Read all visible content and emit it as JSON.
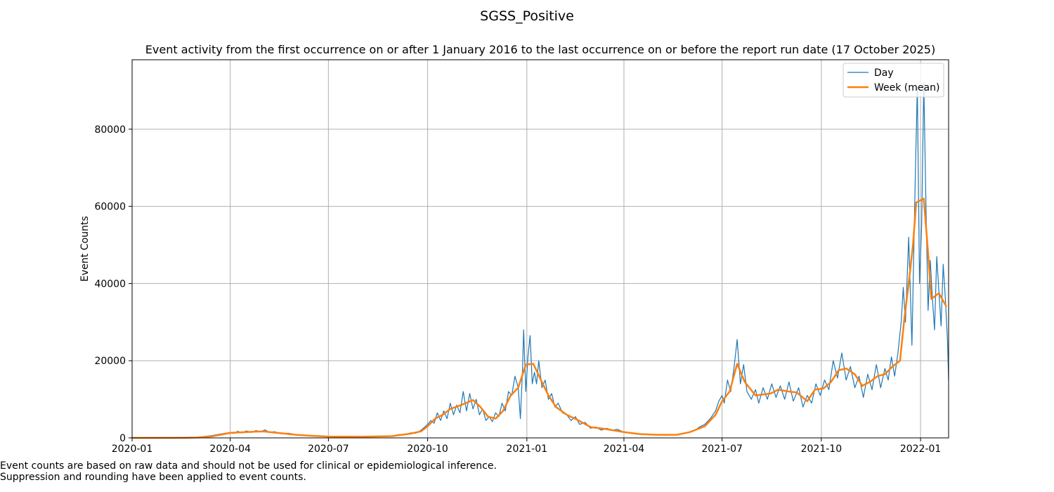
{
  "figure_title": "SGSS_Positive",
  "footnotes": [
    "Event counts are based on raw data and should not be used for clinical or epidemiological inference.",
    "Suppression and rounding have been applied to event counts."
  ],
  "chart_data": {
    "type": "line",
    "title": "Event activity from the first occurrence on or after 1 January 2016 to the last occurrence on or before the report run date (17 October 2025)",
    "xlabel": "",
    "ylabel": "Event Counts",
    "xlim": [
      "2020-01-01",
      "2022-01-27"
    ],
    "ylim": [
      0,
      98000
    ],
    "x_ticks": [
      "2020-01",
      "2020-04",
      "2020-07",
      "2020-10",
      "2021-01",
      "2021-04",
      "2021-07",
      "2021-10",
      "2022-01"
    ],
    "y_ticks": [
      0,
      20000,
      40000,
      60000,
      80000
    ],
    "grid": true,
    "legend_position": "upper right",
    "colors": {
      "day": "#1f77b4",
      "week": "#ff7f0e"
    },
    "series": [
      {
        "name": "Day",
        "points": [
          [
            "2020-01-01",
            0
          ],
          [
            "2020-02-15",
            20
          ],
          [
            "2020-03-01",
            150
          ],
          [
            "2020-03-15",
            600
          ],
          [
            "2020-03-25",
            1100
          ],
          [
            "2020-04-01",
            1400
          ],
          [
            "2020-04-04",
            1150
          ],
          [
            "2020-04-08",
            1700
          ],
          [
            "2020-04-12",
            1300
          ],
          [
            "2020-04-16",
            1800
          ],
          [
            "2020-04-20",
            1400
          ],
          [
            "2020-04-25",
            1900
          ],
          [
            "2020-04-29",
            1500
          ],
          [
            "2020-05-03",
            2100
          ],
          [
            "2020-05-07",
            1500
          ],
          [
            "2020-05-12",
            1600
          ],
          [
            "2020-05-18",
            1100
          ],
          [
            "2020-05-25",
            1200
          ],
          [
            "2020-06-01",
            800
          ],
          [
            "2020-06-10",
            600
          ],
          [
            "2020-06-20",
            500
          ],
          [
            "2020-07-01",
            300
          ],
          [
            "2020-07-15",
            250
          ],
          [
            "2020-08-01",
            280
          ],
          [
            "2020-08-15",
            400
          ],
          [
            "2020-08-29",
            500
          ],
          [
            "2020-09-05",
            900
          ],
          [
            "2020-09-10",
            800
          ],
          [
            "2020-09-15",
            1300
          ],
          [
            "2020-09-20",
            1200
          ],
          [
            "2020-09-25",
            2000
          ],
          [
            "2020-10-01",
            3500
          ],
          [
            "2020-10-04",
            4500
          ],
          [
            "2020-10-07",
            3800
          ],
          [
            "2020-10-10",
            6500
          ],
          [
            "2020-10-13",
            4500
          ],
          [
            "2020-10-16",
            7000
          ],
          [
            "2020-10-19",
            5000
          ],
          [
            "2020-10-22",
            9000
          ],
          [
            "2020-10-25",
            6000
          ],
          [
            "2020-10-28",
            8500
          ],
          [
            "2020-10-31",
            6500
          ],
          [
            "2020-11-03",
            12000
          ],
          [
            "2020-11-06",
            7000
          ],
          [
            "2020-11-09",
            11500
          ],
          [
            "2020-11-12",
            7500
          ],
          [
            "2020-11-15",
            10000
          ],
          [
            "2020-11-18",
            6000
          ],
          [
            "2020-11-21",
            7500
          ],
          [
            "2020-11-24",
            4500
          ],
          [
            "2020-11-27",
            5500
          ],
          [
            "2020-11-30",
            4200
          ],
          [
            "2020-12-03",
            6500
          ],
          [
            "2020-12-06",
            5500
          ],
          [
            "2020-12-09",
            9000
          ],
          [
            "2020-12-12",
            7000
          ],
          [
            "2020-12-15",
            12000
          ],
          [
            "2020-12-18",
            11000
          ],
          [
            "2020-12-21",
            16000
          ],
          [
            "2020-12-24",
            13000
          ],
          [
            "2020-12-26",
            5000
          ],
          [
            "2020-12-28",
            18000
          ],
          [
            "2020-12-29",
            28000
          ],
          [
            "2020-12-31",
            12000
          ],
          [
            "2021-01-02",
            21000
          ],
          [
            "2021-01-04",
            26500
          ],
          [
            "2021-01-06",
            14000
          ],
          [
            "2021-01-08",
            17000
          ],
          [
            "2021-01-10",
            14000
          ],
          [
            "2021-01-12",
            20000
          ],
          [
            "2021-01-15",
            13000
          ],
          [
            "2021-01-18",
            15000
          ],
          [
            "2021-01-21",
            10000
          ],
          [
            "2021-01-24",
            11500
          ],
          [
            "2021-01-27",
            8000
          ],
          [
            "2021-01-30",
            9000
          ],
          [
            "2021-02-03",
            6500
          ],
          [
            "2021-02-07",
            6000
          ],
          [
            "2021-02-11",
            4500
          ],
          [
            "2021-02-15",
            5500
          ],
          [
            "2021-02-19",
            3500
          ],
          [
            "2021-02-24",
            4000
          ],
          [
            "2021-03-01",
            2500
          ],
          [
            "2021-03-06",
            2800
          ],
          [
            "2021-03-11",
            2000
          ],
          [
            "2021-03-16",
            2500
          ],
          [
            "2021-03-21",
            2000
          ],
          [
            "2021-03-26",
            2200
          ],
          [
            "2021-04-01",
            1500
          ],
          [
            "2021-04-10",
            1100
          ],
          [
            "2021-04-20",
            900
          ],
          [
            "2021-05-01",
            800
          ],
          [
            "2021-05-10",
            700
          ],
          [
            "2021-05-20",
            900
          ],
          [
            "2021-05-27",
            1200
          ],
          [
            "2021-06-01",
            1500
          ],
          [
            "2021-06-05",
            1800
          ],
          [
            "2021-06-10",
            2800
          ],
          [
            "2021-06-15",
            3500
          ],
          [
            "2021-06-20",
            5000
          ],
          [
            "2021-06-25",
            7000
          ],
          [
            "2021-06-28",
            9500
          ],
          [
            "2021-07-01",
            11000
          ],
          [
            "2021-07-03",
            9000
          ],
          [
            "2021-07-06",
            15000
          ],
          [
            "2021-07-09",
            12000
          ],
          [
            "2021-07-12",
            18000
          ],
          [
            "2021-07-15",
            25500
          ],
          [
            "2021-07-18",
            14000
          ],
          [
            "2021-07-21",
            19000
          ],
          [
            "2021-07-24",
            12000
          ],
          [
            "2021-07-28",
            10000
          ],
          [
            "2021-08-01",
            12500
          ],
          [
            "2021-08-04",
            9000
          ],
          [
            "2021-08-08",
            13000
          ],
          [
            "2021-08-12",
            10000
          ],
          [
            "2021-08-16",
            14000
          ],
          [
            "2021-08-20",
            10500
          ],
          [
            "2021-08-24",
            13500
          ],
          [
            "2021-08-28",
            10000
          ],
          [
            "2021-09-01",
            14500
          ],
          [
            "2021-09-05",
            9500
          ],
          [
            "2021-09-10",
            13000
          ],
          [
            "2021-09-14",
            8000
          ],
          [
            "2021-09-18",
            11000
          ],
          [
            "2021-09-22",
            9000
          ],
          [
            "2021-09-26",
            14000
          ],
          [
            "2021-09-30",
            11000
          ],
          [
            "2021-10-04",
            15000
          ],
          [
            "2021-10-08",
            12500
          ],
          [
            "2021-10-12",
            20000
          ],
          [
            "2021-10-16",
            15500
          ],
          [
            "2021-10-20",
            22000
          ],
          [
            "2021-10-24",
            15000
          ],
          [
            "2021-10-28",
            18500
          ],
          [
            "2021-11-01",
            13000
          ],
          [
            "2021-11-05",
            16000
          ],
          [
            "2021-11-09",
            10500
          ],
          [
            "2021-11-13",
            16500
          ],
          [
            "2021-11-17",
            12500
          ],
          [
            "2021-11-21",
            19000
          ],
          [
            "2021-11-25",
            13000
          ],
          [
            "2021-11-29",
            18000
          ],
          [
            "2021-12-02",
            15000
          ],
          [
            "2021-12-05",
            21000
          ],
          [
            "2021-12-08",
            16000
          ],
          [
            "2021-12-11",
            22000
          ],
          [
            "2021-12-14",
            30000
          ],
          [
            "2021-12-16",
            39000
          ],
          [
            "2021-12-18",
            30000
          ],
          [
            "2021-12-21",
            52000
          ],
          [
            "2021-12-24",
            24000
          ],
          [
            "2021-12-27",
            66000
          ],
          [
            "2021-12-29",
            91000
          ],
          [
            "2021-12-31",
            40000
          ],
          [
            "2022-01-02",
            55000
          ],
          [
            "2022-01-04",
            92000
          ],
          [
            "2022-01-06",
            60000
          ],
          [
            "2022-01-08",
            33000
          ],
          [
            "2022-01-10",
            46000
          ],
          [
            "2022-01-12",
            36000
          ],
          [
            "2022-01-14",
            28000
          ],
          [
            "2022-01-16",
            47000
          ],
          [
            "2022-01-18",
            38000
          ],
          [
            "2022-01-20",
            29000
          ],
          [
            "2022-01-22",
            45000
          ],
          [
            "2022-01-24",
            36000
          ],
          [
            "2022-01-26",
            25000
          ],
          [
            "2022-01-27",
            15000
          ]
        ]
      },
      {
        "name": "Week (mean)",
        "points": [
          [
            "2020-01-01",
            0
          ],
          [
            "2020-02-15",
            20
          ],
          [
            "2020-03-01",
            100
          ],
          [
            "2020-03-15",
            400
          ],
          [
            "2020-04-01",
            1300
          ],
          [
            "2020-04-15",
            1500
          ],
          [
            "2020-05-01",
            1700
          ],
          [
            "2020-05-15",
            1300
          ],
          [
            "2020-06-01",
            800
          ],
          [
            "2020-06-15",
            550
          ],
          [
            "2020-07-01",
            350
          ],
          [
            "2020-08-01",
            300
          ],
          [
            "2020-08-29",
            450
          ],
          [
            "2020-09-15",
            1100
          ],
          [
            "2020-09-25",
            1700
          ],
          [
            "2020-10-01",
            3000
          ],
          [
            "2020-10-08",
            5000
          ],
          [
            "2020-10-15",
            6000
          ],
          [
            "2020-10-22",
            7500
          ],
          [
            "2020-11-01",
            8500
          ],
          [
            "2020-11-12",
            9800
          ],
          [
            "2020-11-19",
            8000
          ],
          [
            "2020-11-26",
            5500
          ],
          [
            "2020-12-03",
            5000
          ],
          [
            "2020-12-10",
            7000
          ],
          [
            "2020-12-17",
            11000
          ],
          [
            "2020-12-24",
            13000
          ],
          [
            "2020-12-31",
            19000
          ],
          [
            "2021-01-07",
            19200
          ],
          [
            "2021-01-14",
            15000
          ],
          [
            "2021-01-21",
            11000
          ],
          [
            "2021-01-28",
            8000
          ],
          [
            "2021-02-07",
            6000
          ],
          [
            "2021-02-18",
            4500
          ],
          [
            "2021-03-01",
            2800
          ],
          [
            "2021-03-15",
            2300
          ],
          [
            "2021-04-01",
            1500
          ],
          [
            "2021-04-15",
            1000
          ],
          [
            "2021-05-01",
            800
          ],
          [
            "2021-05-20",
            800
          ],
          [
            "2021-06-01",
            1500
          ],
          [
            "2021-06-15",
            3000
          ],
          [
            "2021-06-25",
            6000
          ],
          [
            "2021-07-01",
            9500
          ],
          [
            "2021-07-08",
            12000
          ],
          [
            "2021-07-15",
            19200
          ],
          [
            "2021-07-22",
            14500
          ],
          [
            "2021-08-01",
            11000
          ],
          [
            "2021-08-15",
            11500
          ],
          [
            "2021-08-22",
            12500
          ],
          [
            "2021-09-01",
            12000
          ],
          [
            "2021-09-08",
            11800
          ],
          [
            "2021-09-18",
            9500
          ],
          [
            "2021-09-25",
            12500
          ],
          [
            "2021-10-03",
            12800
          ],
          [
            "2021-10-10",
            14500
          ],
          [
            "2021-10-17",
            17500
          ],
          [
            "2021-10-24",
            18000
          ],
          [
            "2021-11-01",
            16500
          ],
          [
            "2021-11-08",
            13500
          ],
          [
            "2021-11-15",
            14500
          ],
          [
            "2021-11-22",
            16000
          ],
          [
            "2021-11-29",
            16500
          ],
          [
            "2021-12-06",
            18500
          ],
          [
            "2021-12-13",
            20000
          ],
          [
            "2021-12-17",
            31000
          ],
          [
            "2021-12-21",
            40000
          ],
          [
            "2021-12-25",
            50000
          ],
          [
            "2021-12-28",
            61000
          ],
          [
            "2022-01-04",
            62000
          ],
          [
            "2022-01-08",
            48000
          ],
          [
            "2022-01-11",
            36000
          ],
          [
            "2022-01-18",
            37500
          ],
          [
            "2022-01-25",
            34000
          ]
        ]
      }
    ]
  }
}
